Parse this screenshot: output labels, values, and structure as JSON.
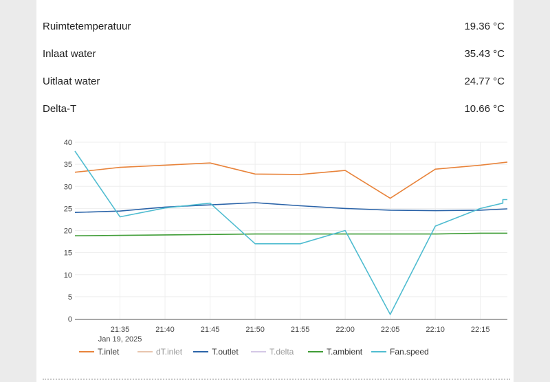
{
  "readings": [
    {
      "label": "Ruimtetemperatuur",
      "value": "19.36 °C"
    },
    {
      "label": "Inlaat water",
      "value": "35.43 °C"
    },
    {
      "label": "Uitlaat water",
      "value": "24.77 °C"
    },
    {
      "label": "Delta-T",
      "value": "10.66 °C"
    }
  ],
  "chart_data": {
    "type": "line",
    "x_ticks": [
      "21:35",
      "21:40",
      "21:45",
      "21:50",
      "21:55",
      "22:00",
      "22:05",
      "22:10",
      "22:15"
    ],
    "x_date": "Jan 19, 2025",
    "xlim": [
      "21:30",
      "22:18"
    ],
    "ylim": [
      0,
      40
    ],
    "y_ticks": [
      0,
      5,
      10,
      15,
      20,
      25,
      30,
      35,
      40
    ],
    "grid": true,
    "legend_position": "bottom",
    "series": [
      {
        "name": "T.inlet",
        "color": "#e8833a",
        "visible": true,
        "points": [
          [
            "21:30",
            33.2
          ],
          [
            "21:35",
            34.3
          ],
          [
            "21:40",
            34.8
          ],
          [
            "21:45",
            35.3
          ],
          [
            "21:50",
            32.8
          ],
          [
            "21:55",
            32.7
          ],
          [
            "22:00",
            33.6
          ],
          [
            "22:05",
            27.3
          ],
          [
            "22:10",
            33.9
          ],
          [
            "22:15",
            34.8
          ],
          [
            "22:18",
            35.5
          ]
        ]
      },
      {
        "name": "dT.inlet",
        "color": "#d9a07a",
        "visible": false,
        "points": []
      },
      {
        "name": "T.outlet",
        "color": "#2a63a8",
        "visible": true,
        "points": [
          [
            "21:30",
            24.1
          ],
          [
            "21:35",
            24.4
          ],
          [
            "21:40",
            25.3
          ],
          [
            "21:45",
            25.8
          ],
          [
            "21:50",
            26.3
          ],
          [
            "21:55",
            25.6
          ],
          [
            "22:00",
            25.0
          ],
          [
            "22:05",
            24.6
          ],
          [
            "22:10",
            24.5
          ],
          [
            "22:15",
            24.6
          ],
          [
            "22:18",
            24.9
          ]
        ]
      },
      {
        "name": "T.delta",
        "color": "#b9a5d6",
        "visible": false,
        "points": []
      },
      {
        "name": "T.ambient",
        "color": "#3e9c35",
        "visible": true,
        "points": [
          [
            "21:30",
            18.8
          ],
          [
            "21:35",
            18.9
          ],
          [
            "21:40",
            19.0
          ],
          [
            "21:45",
            19.1
          ],
          [
            "21:50",
            19.2
          ],
          [
            "21:55",
            19.2
          ],
          [
            "22:00",
            19.2
          ],
          [
            "22:05",
            19.2
          ],
          [
            "22:10",
            19.2
          ],
          [
            "22:15",
            19.4
          ],
          [
            "22:18",
            19.4
          ]
        ]
      },
      {
        "name": "Fan.speed",
        "color": "#4fbcd0",
        "visible": true,
        "points": [
          [
            "21:30",
            38.0
          ],
          [
            "21:35",
            23.1
          ],
          [
            "21:40",
            25.1
          ],
          [
            "21:45",
            26.2
          ],
          [
            "21:50",
            17.0
          ],
          [
            "21:55",
            17.0
          ],
          [
            "22:00",
            20.0
          ],
          [
            "22:05",
            1.0
          ],
          [
            "22:10",
            21.0
          ],
          [
            "22:15",
            25.0
          ],
          [
            "22:17.5",
            26.2
          ],
          [
            "22:17.5",
            27.0
          ],
          [
            "22:18",
            27.0
          ]
        ]
      }
    ]
  }
}
